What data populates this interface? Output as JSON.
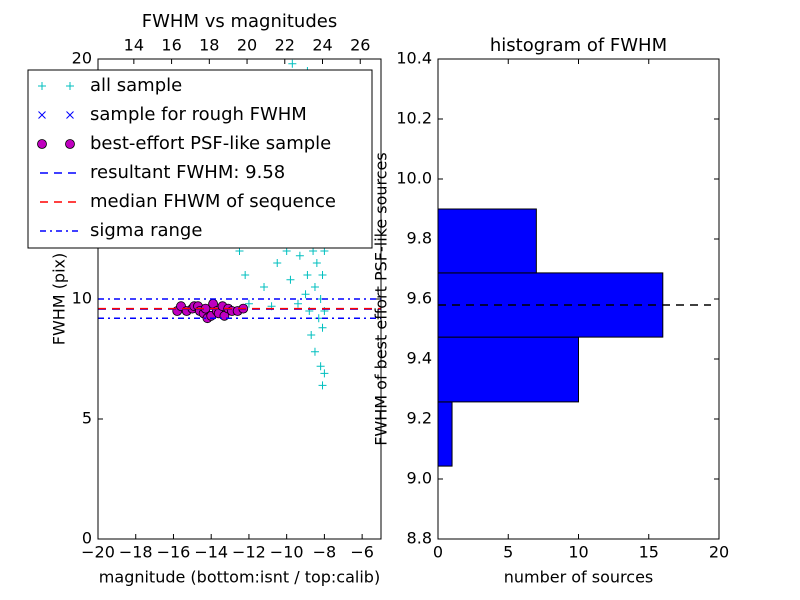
{
  "chart_data": [
    {
      "type": "scatter",
      "title": "FWHM vs magnitudes",
      "xlabel": "magnitude (bottom:isnt / top:calib)",
      "ylabel": "FWHM (pix)",
      "xlim": [
        -20,
        -5
      ],
      "xticks": [
        {
          "value": -20,
          "label": "−20"
        },
        {
          "value": -18,
          "label": "−18"
        },
        {
          "value": -16,
          "label": "−16"
        },
        {
          "value": -14,
          "label": "−14"
        },
        {
          "value": -12,
          "label": "−12"
        },
        {
          "value": -10,
          "label": "−10"
        },
        {
          "value": -8,
          "label": "−8"
        },
        {
          "value": -6,
          "label": "−6"
        }
      ],
      "x2lim": [
        12.1,
        27.1
      ],
      "x2ticks": [
        14,
        16,
        18,
        20,
        22,
        24,
        26
      ],
      "ylim": [
        0,
        20
      ],
      "yticks": [
        0,
        5,
        10,
        20
      ],
      "legend": "upper left",
      "series": [
        {
          "name": "all sample",
          "color": "#00bfbf",
          "marker": "+",
          "x": [
            -12.5,
            -12.2,
            -12.0,
            -11.5,
            -11.2,
            -11.0,
            -10.8,
            -10.5,
            -10.2,
            -10.0,
            -9.8,
            -9.6,
            -9.5,
            -9.4,
            -9.3,
            -9.2,
            -9.1,
            -9.0,
            -9.0,
            -8.9,
            -8.9,
            -8.8,
            -8.8,
            -8.7,
            -8.7,
            -8.6,
            -8.6,
            -8.5,
            -8.5,
            -8.5,
            -8.4,
            -8.4,
            -8.4,
            -8.3,
            -8.3,
            -8.3,
            -8.2,
            -8.2,
            -8.2,
            -8.1,
            -8.1,
            -8.1,
            -8.0,
            -8.0,
            -8.0,
            -8.0,
            -9.7,
            -15.8,
            -14.5,
            -13.2
          ],
          "values": [
            12.0,
            11.0,
            9.8,
            12.5,
            10.5,
            13.0,
            9.7,
            11.5,
            14.5,
            12.0,
            10.8,
            15.5,
            13.5,
            9.8,
            11.8,
            17.0,
            12.5,
            10.2,
            14.0,
            19.5,
            11.0,
            13.0,
            9.5,
            15.0,
            8.5,
            12.0,
            16.5,
            10.5,
            14.0,
            7.8,
            11.5,
            13.5,
            18.0,
            9.2,
            12.5,
            15.5,
            10.0,
            7.2,
            13.0,
            11.0,
            8.8,
            6.4,
            12.0,
            9.5,
            14.5,
            6.9,
            19.8,
            9.5,
            9.6,
            9.4
          ]
        },
        {
          "name": "sample for rough FWHM",
          "color": "#0000ff",
          "marker": "x",
          "x": [
            -15.3,
            -14.6,
            -13.9,
            -13.1,
            -12.6
          ],
          "values": [
            9.5,
            9.5,
            9.8,
            9.6,
            9.5
          ]
        },
        {
          "name": "best-effort PSF-like sample",
          "color": "#bf00bf",
          "marker": "o",
          "x": [
            -15.8,
            -15.6,
            -15.3,
            -15.0,
            -14.9,
            -14.7,
            -14.6,
            -14.4,
            -14.3,
            -14.2,
            -14.0,
            -13.9,
            -13.7,
            -13.6,
            -13.4,
            -13.3,
            -13.1,
            -12.9,
            -12.6,
            -12.3
          ],
          "values": [
            9.5,
            9.7,
            9.5,
            9.6,
            9.7,
            9.7,
            9.5,
            9.4,
            9.6,
            9.2,
            9.3,
            9.8,
            9.5,
            9.4,
            9.7,
            9.3,
            9.6,
            9.5,
            9.5,
            9.6
          ]
        },
        {
          "name": "resultant FWHM: 9.58",
          "color": "#0000ff",
          "marker": "hline",
          "dash": "dashed",
          "values": [
            9.58
          ]
        },
        {
          "name": "median FHWM of sequence",
          "color": "#ff0000",
          "marker": "hline",
          "dash": "dashed",
          "values": [
            9.6
          ]
        },
        {
          "name": "sigma range",
          "color": "#0000ff",
          "marker": "hline",
          "dash": "dashdot",
          "values": [
            9.2,
            10.0
          ]
        }
      ]
    },
    {
      "type": "histogram",
      "orientation": "horizontal",
      "title": "histogram of FWHM",
      "xlabel": "number of sources",
      "ylabel": "FWHM of best effort PSF-like sources",
      "xlim": [
        0,
        20
      ],
      "xticks": [
        0,
        5,
        10,
        15,
        20
      ],
      "ylim": [
        8.8,
        10.4
      ],
      "yticks": [
        {
          "value": 8.8,
          "label": "8.8"
        },
        {
          "value": 9.0,
          "label": "9.0"
        },
        9.2,
        9.4,
        9.6,
        9.8,
        {
          "value": 10.0,
          "label": "10.0"
        },
        10.2,
        10.4
      ],
      "bins": [
        9.043,
        9.257,
        9.473,
        9.687,
        9.9
      ],
      "values": [
        1,
        10,
        16,
        7
      ],
      "color": "#0000ff",
      "hline": {
        "value": 9.58,
        "color": "#000000",
        "dash": "dashed"
      }
    }
  ]
}
